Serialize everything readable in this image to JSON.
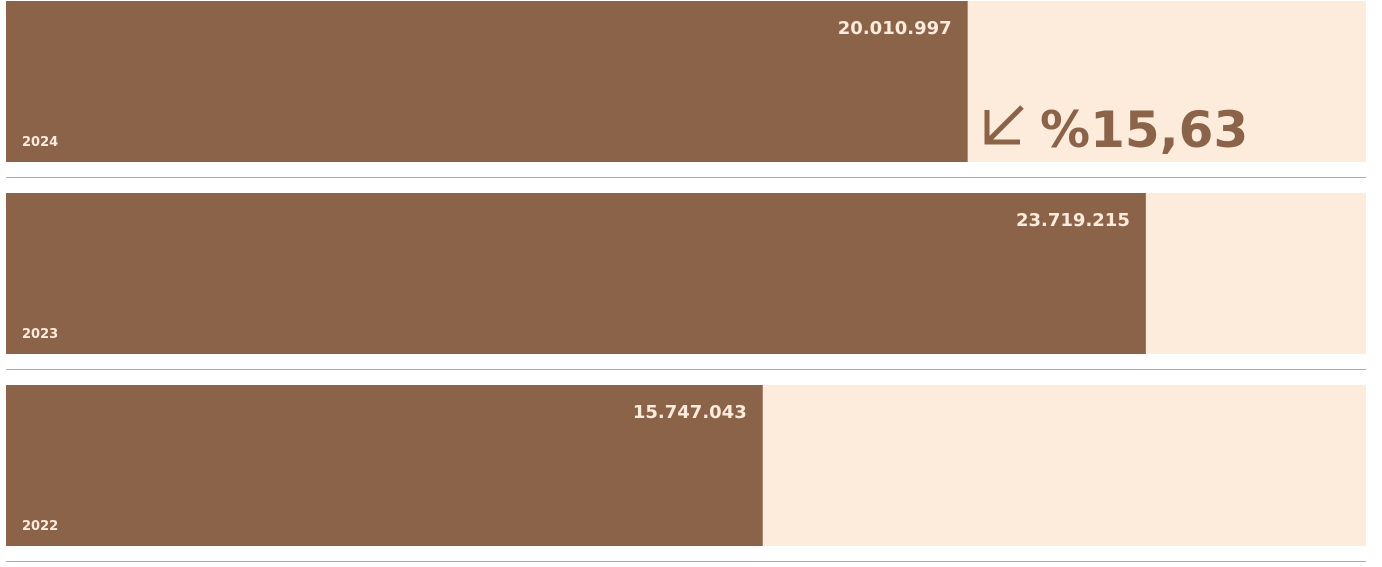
{
  "chart_data": {
    "type": "bar",
    "orientation": "horizontal",
    "categories": [
      "2024",
      "2023",
      "2022"
    ],
    "values": [
      20010997,
      23719215,
      15747043
    ],
    "value_labels": [
      "20.010.997",
      "23.719.215",
      "15.747.043"
    ],
    "color": "#8b6349",
    "track_color": "#fdebdc",
    "xlim": [
      0,
      28300000
    ],
    "annotation": "%15,63"
  }
}
